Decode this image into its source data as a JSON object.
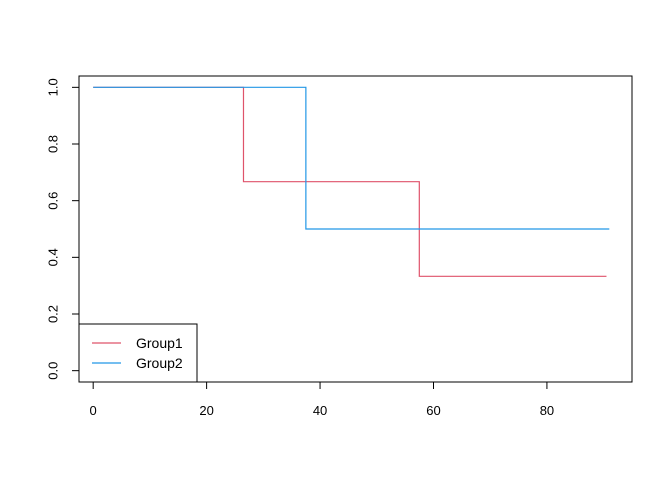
{
  "chart_data": {
    "type": "line",
    "step": true,
    "title": "",
    "xlabel": "",
    "ylabel": "",
    "xlim": [
      -2.5,
      95
    ],
    "ylim": [
      -0.04,
      1.04
    ],
    "x_ticks": [
      0,
      20,
      40,
      60,
      80
    ],
    "y_ticks": [
      0.0,
      0.2,
      0.4,
      0.6,
      0.8,
      1.0
    ],
    "x_tick_labels": [
      "0",
      "20",
      "40",
      "60",
      "80"
    ],
    "y_tick_labels": [
      "0.0",
      "0.2",
      "0.4",
      "0.6",
      "0.8",
      "1.0"
    ],
    "grid": false,
    "legend_position": "bottom-left",
    "series": [
      {
        "name": "Group1",
        "color": "#DF536B",
        "x": [
          0,
          26.5,
          57.5,
          90.5
        ],
        "y": [
          1.0,
          0.667,
          0.333,
          0.333
        ]
      },
      {
        "name": "Group2",
        "color": "#2297E6",
        "x": [
          0,
          37.5,
          91
        ],
        "y": [
          1.0,
          0.5,
          0.5
        ]
      }
    ]
  }
}
